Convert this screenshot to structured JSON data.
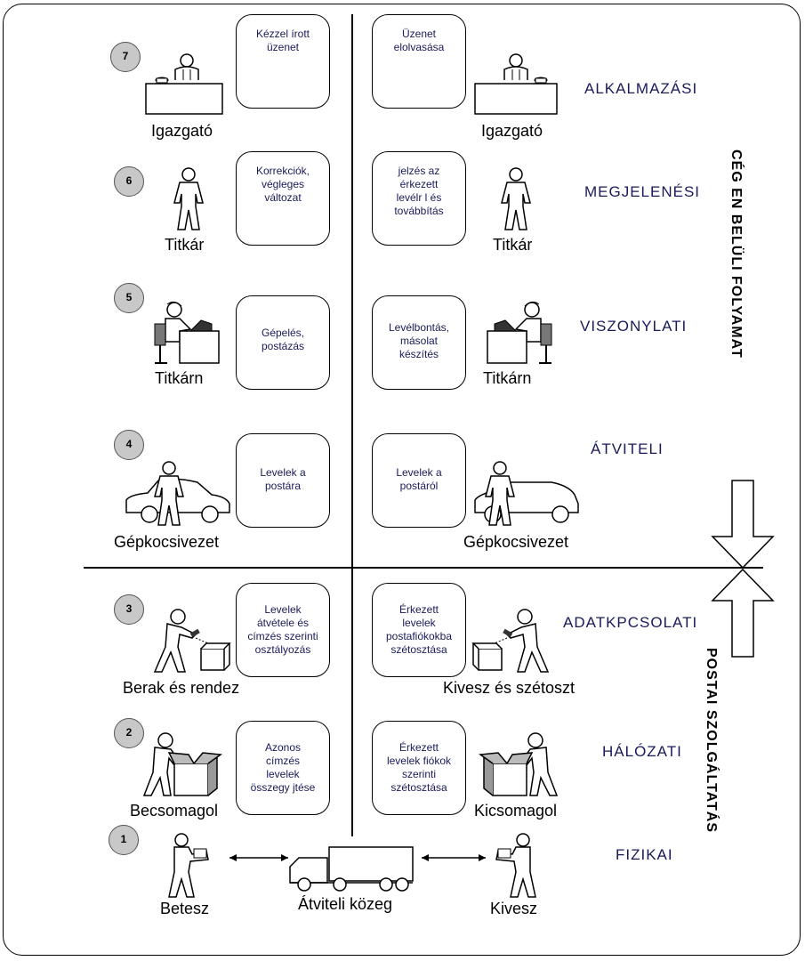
{
  "layers": [
    {
      "num": "7",
      "name": "ALKALMAZÁSI",
      "left_box": "Kézzel írott\nüzenet",
      "right_box": "Üzenet\nelolvasása",
      "left_label": "Igazgató",
      "right_label": "Igazgató",
      "icon": "director-desk-icon"
    },
    {
      "num": "6",
      "name": "MEGJELENÉSI",
      "left_box": "Korrekciók,\nvégleges\nváltozat",
      "right_box": "jelzés az\nérkezett\nlevélr l és\ntovábbítás",
      "left_label": "Titkár",
      "right_label": "Titkár",
      "icon": "person-icon"
    },
    {
      "num": "5",
      "name": "VISZONYLATI",
      "left_box": "Gépelés,\npostázás",
      "right_box": "Levélbontás,\nmásolat\nkészítés",
      "left_label": "Titkárn",
      "right_label": "Titkárn",
      "icon": "typist-icon"
    },
    {
      "num": "4",
      "name": "ÁTVITELI",
      "left_box": "Levelek a\npostára",
      "right_box": "Levelek a\npostáról",
      "left_label": "Gépkocsivezet",
      "right_label": "Gépkocsivezet",
      "icon": "driver-car-icon"
    },
    {
      "num": "3",
      "name": "ADATKPCSOLATI",
      "left_box": "Levelek\nátvétele és\ncímzés szerinti\nosztályozás",
      "right_box": "Érkezett\nlevelek\npostafiókokba\nszétosztása",
      "left_label": "Berak és rendez",
      "right_label": "Kivesz és szétoszt",
      "icon": "sorting-person-icon"
    },
    {
      "num": "2",
      "name": "HÁLÓZATI",
      "left_box": "Azonos\ncímzés\nlevelek\nösszegy jtése",
      "right_box": "Érkezett\nlevelek fiókok\nszerinti\nszétosztása",
      "left_label": "Becsomagol",
      "right_label": "Kicsomagol",
      "icon": "packing-person-icon"
    },
    {
      "num": "1",
      "name": "FIZIKAI",
      "left_label": "Betesz",
      "right_label": "Kivesz",
      "middle_label": "Átviteli közeg",
      "icon": "carrying-person-icon"
    }
  ],
  "side": {
    "top": "CÉG EN BELÜLI FOLYAMAT",
    "bottom": "POSTAI SZOLGÁLTATÁS"
  },
  "icons": [
    "double-arrow-icon",
    "truck-icon",
    "vertical-divider-icon"
  ]
}
